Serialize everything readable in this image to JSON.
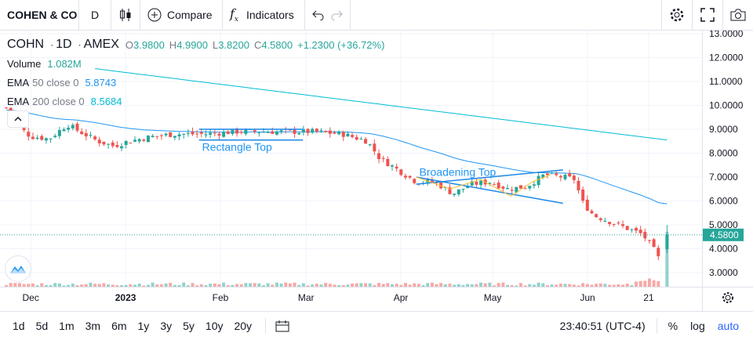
{
  "toolbar": {
    "symbol": "COHEN & CO",
    "interval": "D",
    "compare_label": "Compare",
    "indicators_label": "Indicators"
  },
  "legend": {
    "symbol": "COHN",
    "interval": "1D",
    "exchange": "AMEX",
    "o_label": "O",
    "o_value": "3.9800",
    "h_label": "H",
    "h_value": "4.9900",
    "l_label": "L",
    "l_value": "3.8200",
    "c_label": "C",
    "c_value": "4.5800",
    "change": "+1.2300 (+36.72%)",
    "volume_label": "Volume",
    "volume_value": "1.082M",
    "ema50_label": "EMA",
    "ema50_params": "50 close 0",
    "ema50_value": "5.8743",
    "ema200_label": "EMA",
    "ema200_params": "200 close 0",
    "ema200_value": "8.5684"
  },
  "chart_data": {
    "type": "candlestick",
    "y_ticks": [
      "13.0000",
      "12.0000",
      "11.0000",
      "10.0000",
      "9.0000",
      "8.0000",
      "7.0000",
      "6.0000",
      "5.0000",
      "4.0000",
      "3.0000"
    ],
    "ylim": [
      2.45,
      13.15
    ],
    "x_ticks": [
      {
        "label": "Dec",
        "day": 8
      },
      {
        "label": "2023",
        "day": 39,
        "bold": true
      },
      {
        "label": "Feb",
        "day": 70
      },
      {
        "label": "Mar",
        "day": 98
      },
      {
        "label": "Apr",
        "day": 129
      },
      {
        "label": "May",
        "day": 159
      },
      {
        "label": "Jun",
        "day": 190
      },
      {
        "label": "21",
        "day": 210
      }
    ],
    "last_price": 4.58,
    "last_price_label": "4.5800",
    "annotations": {
      "rectangle_top": "Rectangle Top",
      "broadening_top": "Broadening Top"
    },
    "colors": {
      "up": "#26a69a",
      "down": "#ef5350",
      "ema50": "#2196f3",
      "ema200": "#00bcd4"
    }
  },
  "bottom": {
    "ranges": [
      "1d",
      "5d",
      "1m",
      "3m",
      "6m",
      "1y",
      "3y",
      "5y",
      "10y",
      "20y"
    ],
    "time": "23:40:51 (UTC-4)",
    "percent": "%",
    "log": "log",
    "auto": "auto"
  }
}
